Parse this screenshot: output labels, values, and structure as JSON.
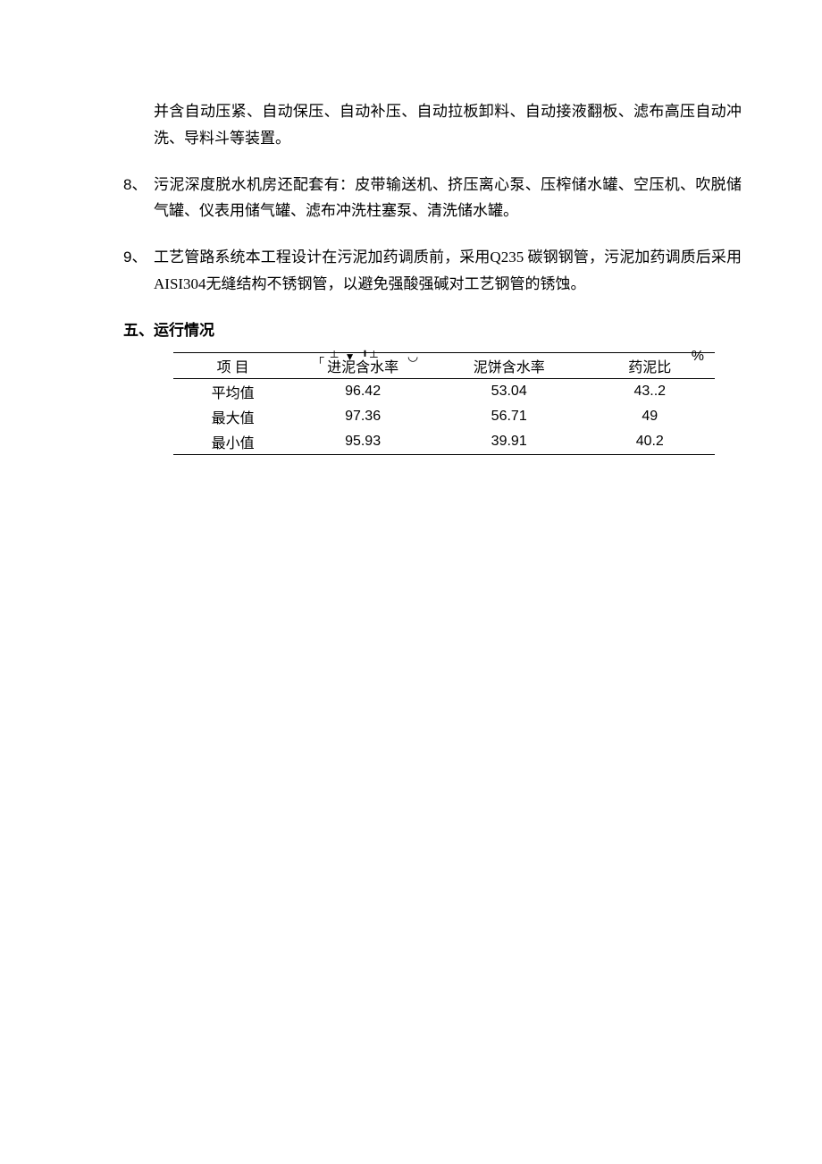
{
  "para_1": "并含自动压紧、自动保压、自动补压、自动拉板卸料、自动接液翻板、滤布高压自动冲洗、导料斗等装置。",
  "item_8_marker": "8、",
  "item_8": "污泥深度脱水机房还配套有：皮带输送机、挤压离心泵、压榨储水罐、空压机、吹脱储气罐、仪表用储气罐、滤布冲洗柱塞泵、清洗储水罐。",
  "item_9_marker": "9、",
  "item_9": "工艺管路系统本工程设计在污泥加药调质前，采用Q235 碳钢钢管，污泥加药调质后采用AISI304无缝结构不锈钢管，以避免强酸强碱对工艺钢管的锈蚀。",
  "section_heading": "五、运行情况",
  "caption_frag1": "┌  ┴ ▼ ╹┴",
  "caption_frag2": "◡",
  "unit": "%",
  "table": {
    "columns": [
      "项  目",
      "进泥含水率",
      "泥饼含水率",
      "药泥比"
    ],
    "rows": [
      [
        "平均值",
        "96.42",
        "53.04",
        "43..2"
      ],
      [
        "最大值",
        "97.36",
        "56.71",
        "49"
      ],
      [
        "最小值",
        "95.93",
        "39.91",
        "40.2"
      ]
    ]
  }
}
